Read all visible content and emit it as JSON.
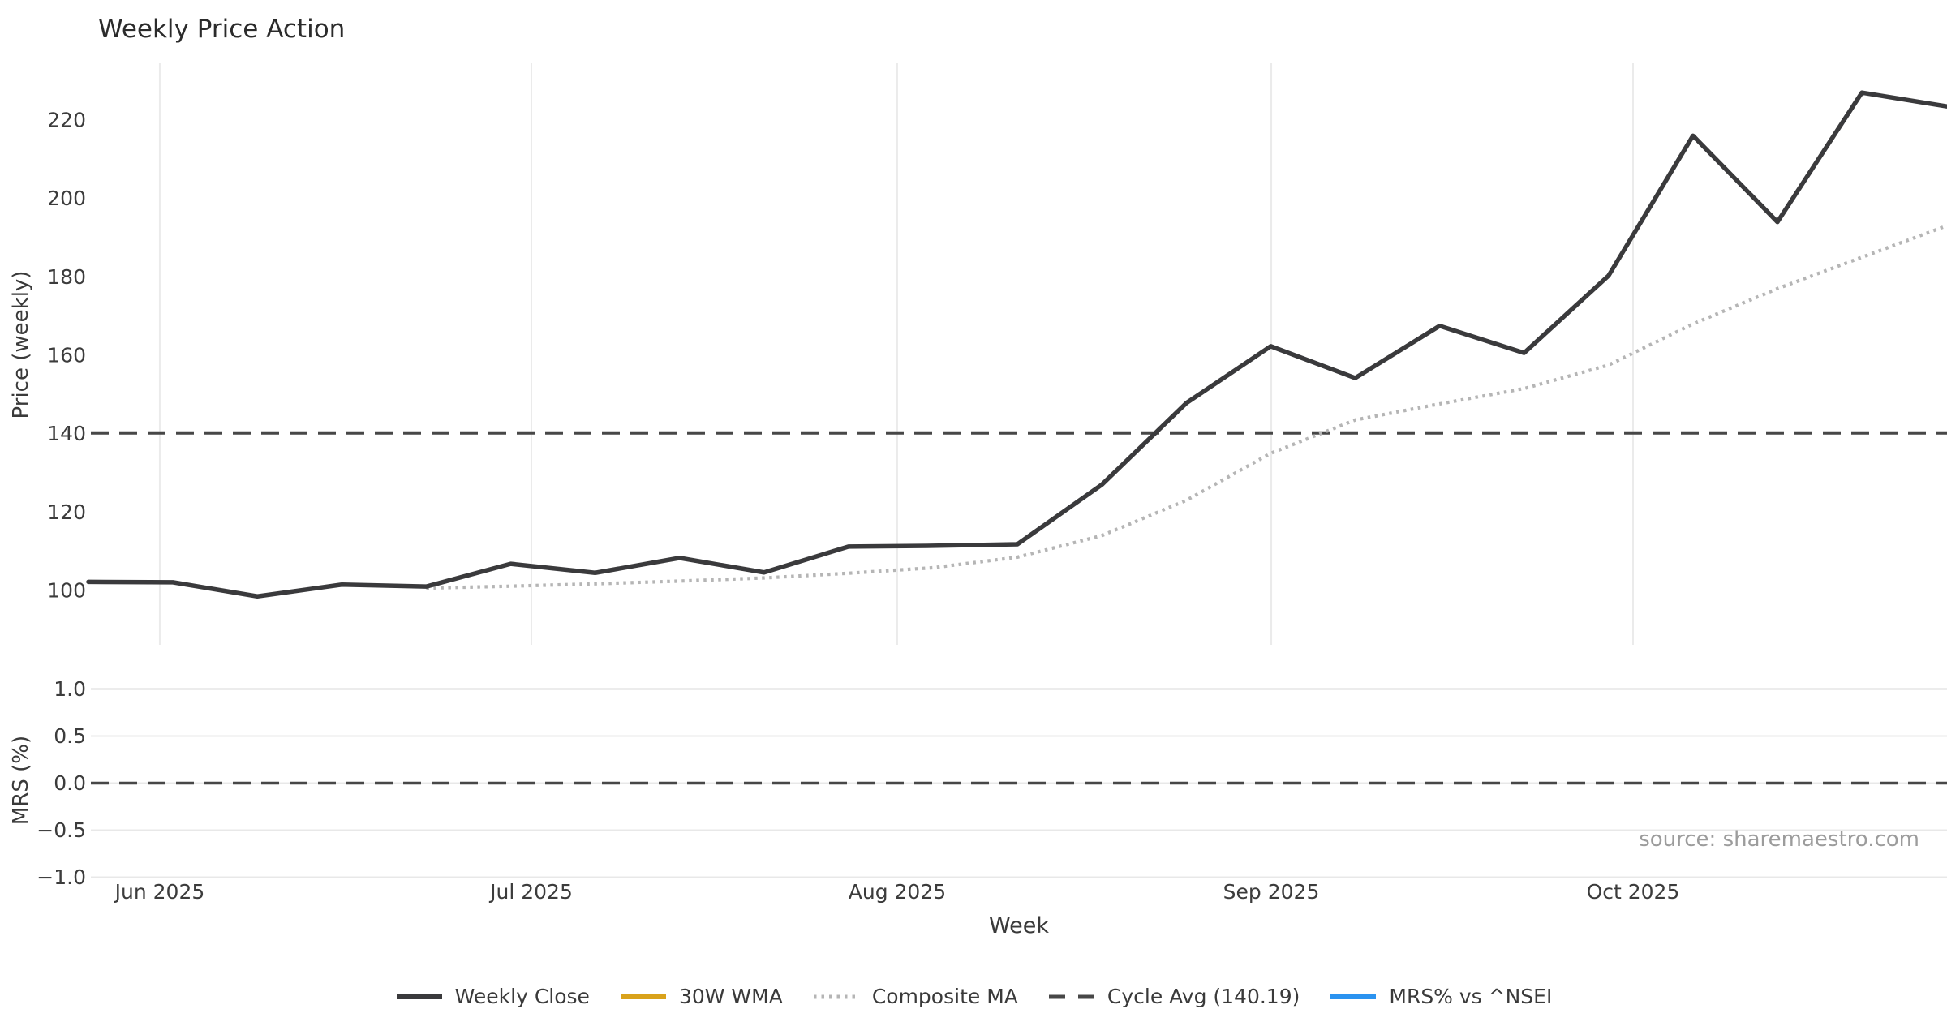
{
  "title": "Weekly Price Action",
  "source_text": "source: sharemaestro.com",
  "colors": {
    "weekly_close": "#3a3a3c",
    "wma_30w": "#d9a21b",
    "composite_ma": "#b5b5b5",
    "cycle_avg": "#474747",
    "mrs_line": "#2b93f0",
    "grid_price": "#ebebeb",
    "grid_mrs": "#e8e8e8",
    "grid_mrs_top": "#d9d9d9",
    "tick_text": "#3c3c3c",
    "title_text": "#2b2b2b",
    "source_text": "#9c9c9c"
  },
  "chart_data": [
    {
      "type": "line",
      "panel": "price",
      "title": "Weekly Price Action",
      "xlabel": "Week",
      "ylabel": "Price (weekly)",
      "ylim": [
        86,
        234.5
      ],
      "yticks": [
        220,
        200,
        180,
        160,
        140,
        120,
        100
      ],
      "xticklabels": [
        "Jun 2025",
        "Jul 2025",
        "Aug 2025",
        "Sep 2025",
        "Oct 2025"
      ],
      "xticks_week": [
        0.845,
        5.245,
        9.577,
        14.006,
        18.29
      ],
      "grid": "vertical-monthly",
      "legend_position": "bottom-center",
      "x_unit": "week-index",
      "series": [
        {
          "name": "Weekly Close",
          "style": "solid",
          "x_start_week": 0,
          "values": [
            102.2,
            102.1,
            98.5,
            101.5,
            101.0,
            106.8,
            104.5,
            108.3,
            104.6,
            111.2,
            111.4,
            111.8,
            127.0,
            147.8,
            162.3,
            154.2,
            167.5,
            160.6,
            180.3,
            216.0,
            194.0,
            227.0,
            223.5
          ]
        },
        {
          "name": "Composite MA",
          "style": "dotted",
          "x_start_week": 4,
          "values": [
            100.6,
            101.1,
            101.7,
            102.4,
            103.2,
            104.4,
            105.8,
            108.5,
            114.0,
            123.0,
            135.0,
            143.5,
            147.6,
            151.5,
            157.5,
            168.0,
            177.0,
            185.0,
            193.0
          ]
        },
        {
          "name": "Cycle Avg",
          "style": "dashed-horizontal",
          "value": 140.19
        },
        {
          "name": "30W WMA",
          "style": "solid",
          "values": [],
          "visible": false
        }
      ]
    },
    {
      "type": "line",
      "panel": "mrs",
      "ylabel": "MRS (%)",
      "ylim": [
        -1.05,
        1.05
      ],
      "yticks": [
        1.0,
        0.5,
        0.0,
        -0.5,
        -1.0
      ],
      "yticklabels": [
        "1.0",
        "0.5",
        "0.0",
        "−0.5",
        "−1.0"
      ],
      "grid": "horizontal",
      "zero_line": {
        "style": "dashed-horizontal",
        "value": 0.0
      },
      "series": [
        {
          "name": "MRS% vs ^NSEI",
          "style": "solid",
          "values": [],
          "visible": false
        }
      ]
    }
  ],
  "legend": [
    {
      "label": "Weekly Close",
      "swatch": "solid",
      "color_key": "weekly_close"
    },
    {
      "label": "30W WMA",
      "swatch": "solid",
      "color_key": "wma_30w"
    },
    {
      "label": "Composite MA",
      "swatch": "dotted",
      "color_key": "composite_ma"
    },
    {
      "label": "Cycle Avg (140.19)",
      "swatch": "dashed",
      "color_key": "cycle_avg"
    },
    {
      "label": "MRS% vs ^NSEI",
      "swatch": "solid",
      "color_key": "mrs_line"
    }
  ]
}
